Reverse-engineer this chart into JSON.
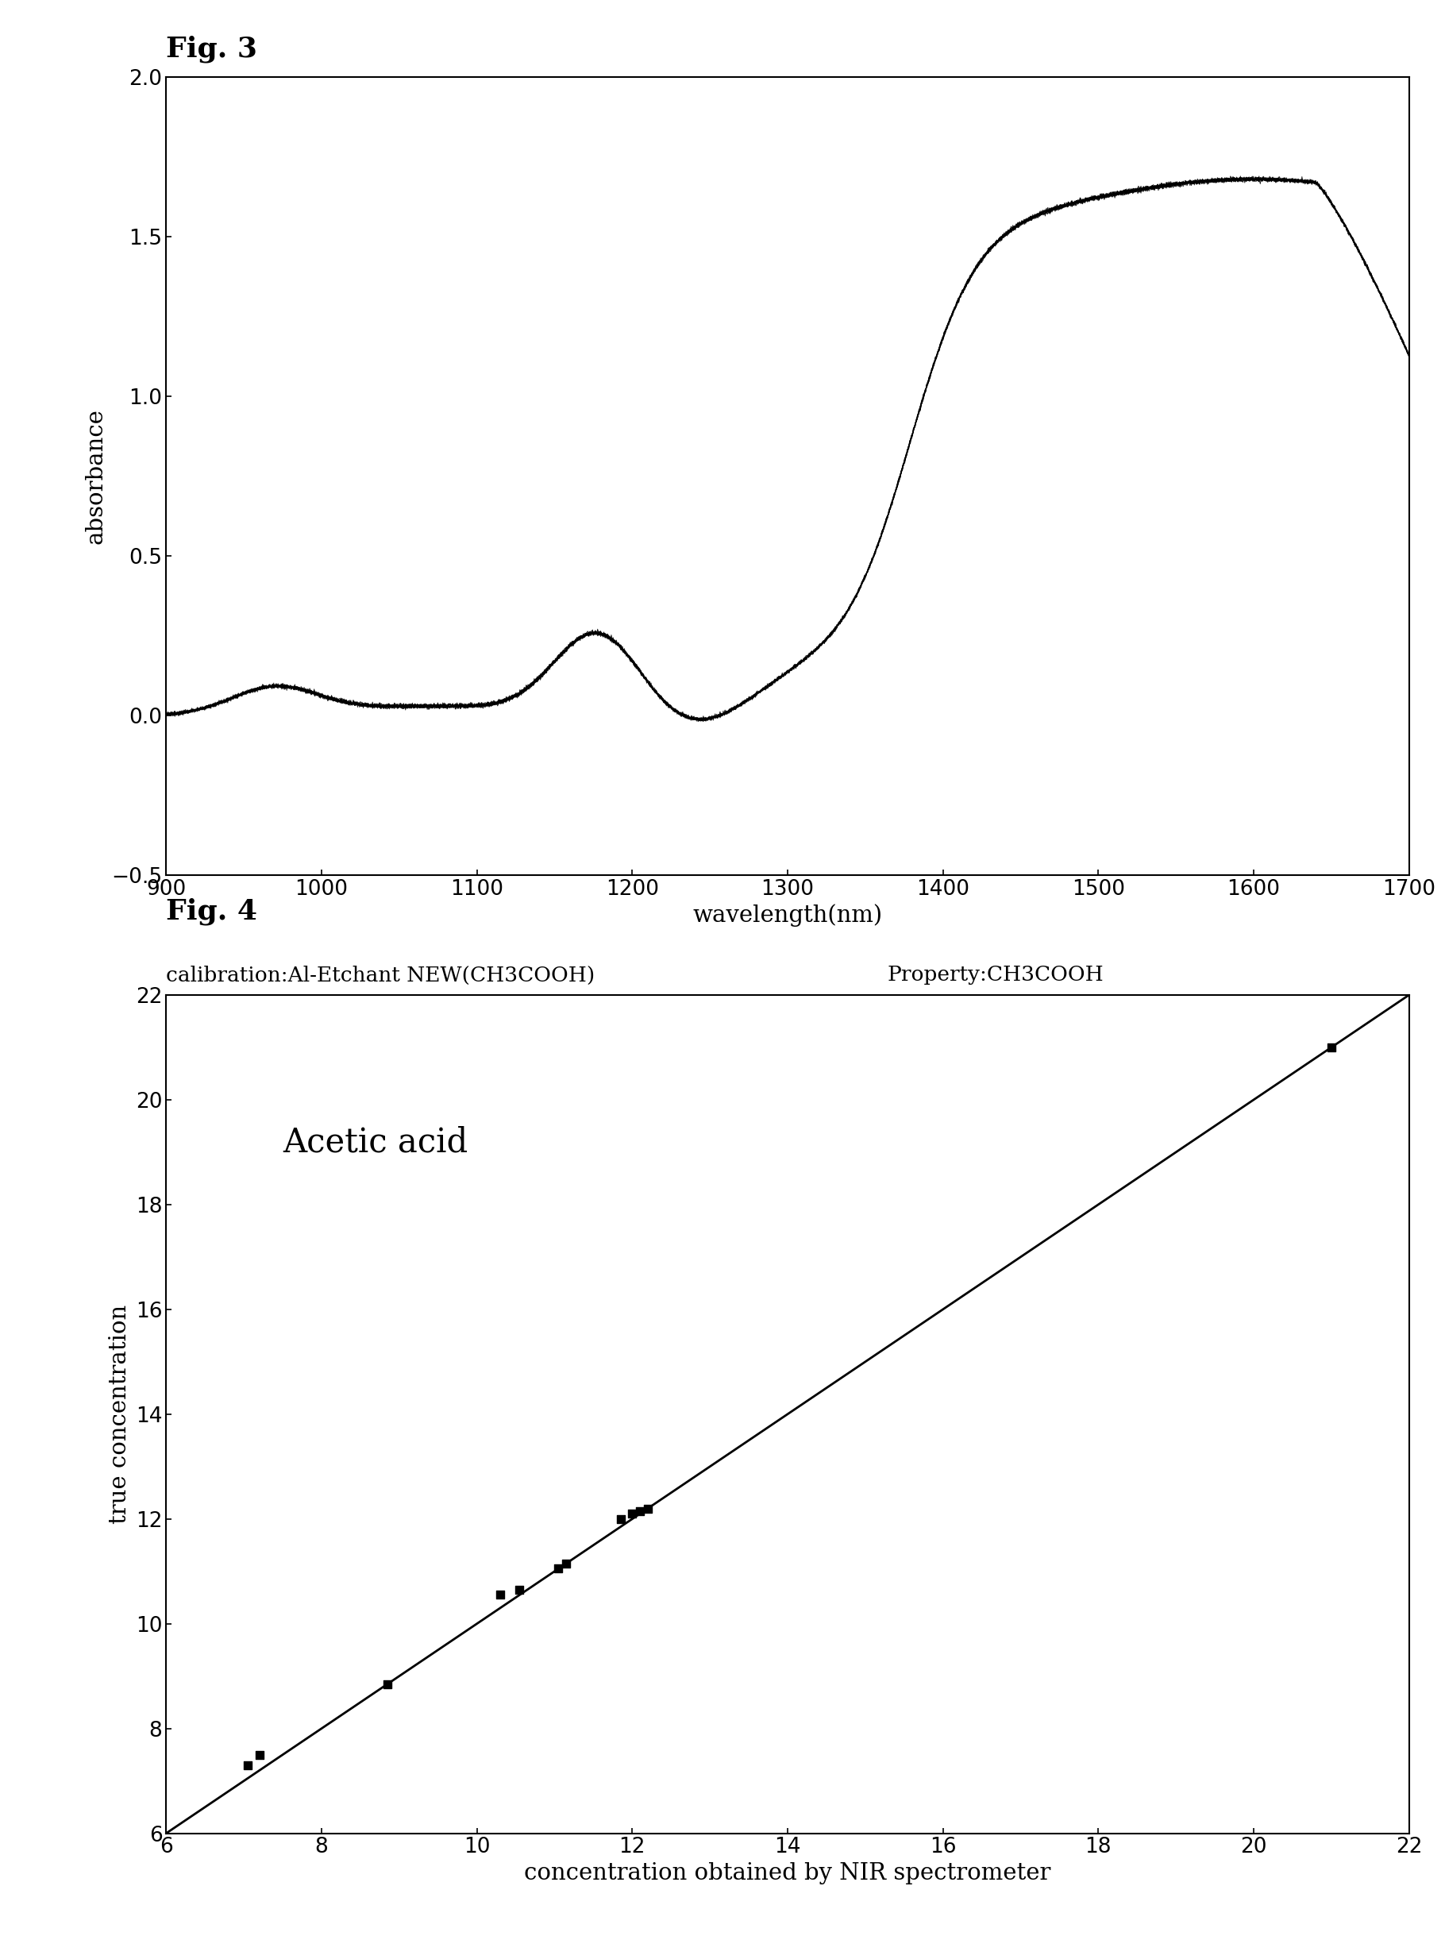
{
  "fig3": {
    "title": "Fig. 3",
    "xlabel": "wavelength(nm)",
    "ylabel": "absorbance",
    "xlim": [
      900,
      1700
    ],
    "ylim": [
      -0.5,
      2.0
    ],
    "yticks": [
      -0.5,
      0.0,
      0.5,
      1.0,
      1.5,
      2.0
    ],
    "xticks": [
      900,
      1000,
      1100,
      1200,
      1300,
      1400,
      1500,
      1600,
      1700
    ]
  },
  "fig4": {
    "title": "Fig. 4",
    "subtitle_left": "calibration:Al-Etchant NEW(CH3COOH)",
    "subtitle_right": "Property:CH3COOH",
    "inner_label": "Acetic acid",
    "xlabel": "concentration obtained by NIR spectrometer",
    "ylabel": "true concentration",
    "xlim": [
      6,
      22
    ],
    "ylim": [
      6,
      22
    ],
    "xticks": [
      6,
      8,
      10,
      12,
      14,
      16,
      18,
      20,
      22
    ],
    "yticks": [
      6,
      8,
      10,
      12,
      14,
      16,
      18,
      20,
      22
    ],
    "scatter_x": [
      7.05,
      7.2,
      8.85,
      10.3,
      10.55,
      11.05,
      11.15,
      11.85,
      12.0,
      12.1,
      12.2,
      21.0
    ],
    "scatter_y": [
      7.3,
      7.5,
      8.85,
      10.55,
      10.65,
      11.05,
      11.15,
      12.0,
      12.1,
      12.15,
      12.2,
      21.0
    ],
    "line_x": [
      6,
      22
    ],
    "line_y": [
      6,
      22
    ]
  }
}
